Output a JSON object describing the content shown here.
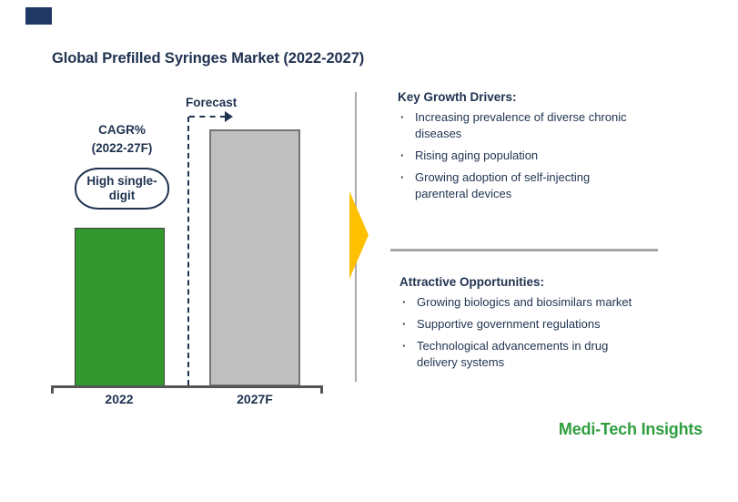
{
  "slide": {
    "title": "Global Prefilled Syringes Market (2022-2027)",
    "brand": "Medi-Tech Insights"
  },
  "chart": {
    "forecast_label": "Forecast",
    "cagr_label": "CAGR%\n(2022-27F)",
    "cagr_value": "High single-\ndigit",
    "bars": [
      {
        "label": "2022"
      },
      {
        "label": "2027F"
      }
    ]
  },
  "chart_data": {
    "type": "bar",
    "title": "Global Prefilled Syringes Market (2022-2027)",
    "categories": [
      "2022",
      "2027F"
    ],
    "values": [
      62,
      100
    ],
    "values_note": "no numeric y-axis shown; values are relative bar heights in %",
    "series_colors": [
      "#33992E",
      "#BFBFBF"
    ],
    "annotations": [
      "CAGR% (2022-27F): High single-digit",
      "Forecast (2027F bar, dashed divider)"
    ],
    "xlabel": "",
    "ylabel": "",
    "grid": false,
    "legend": false
  },
  "right_panel": {
    "bullet_char": "·",
    "sections": [
      {
        "heading": "Key Growth Drivers:",
        "bullets": [
          "Increasing prevalence of diverse chronic\ndiseases",
          "Rising aging population",
          "Growing adoption of self-injecting\nparenteral devices"
        ]
      },
      {
        "heading": "Attractive Opportunities:",
        "bullets": [
          "Growing biologics and biosimilars market",
          "Supportive government regulations",
          "Technological advancements in drug\ndelivery systems"
        ]
      }
    ]
  },
  "colors": {
    "navy_text": "#1F3250",
    "accent_navy": "#1F3864",
    "bar_green": "#33992E",
    "bar_gray": "#BFBFBF",
    "axis_gray": "#555555",
    "divider_gray": "#A6A6A6",
    "panel_line_gray": "#ABABAB",
    "arrow_yellow": "#FFC000",
    "brand_green": "#2E9E3E"
  }
}
